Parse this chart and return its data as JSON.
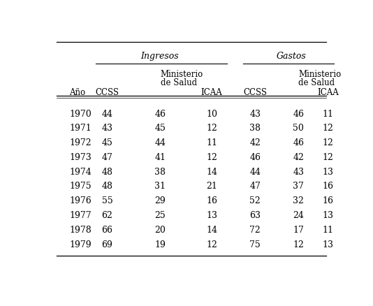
{
  "years": [
    "1970",
    "1971",
    "1972",
    "1973",
    "1974",
    "1975",
    "1976",
    "1977",
    "1978",
    "1979"
  ],
  "ingresos_ccss": [
    44,
    43,
    45,
    47,
    48,
    48,
    55,
    62,
    66,
    69
  ],
  "ingresos_minsalud": [
    46,
    45,
    44,
    41,
    38,
    31,
    29,
    25,
    20,
    19
  ],
  "ingresos_icaa": [
    10,
    12,
    11,
    12,
    14,
    21,
    16,
    13,
    14,
    12
  ],
  "gastos_ccss": [
    43,
    38,
    42,
    46,
    44,
    47,
    52,
    63,
    72,
    75
  ],
  "gastos_minsalud": [
    46,
    50,
    46,
    42,
    43,
    37,
    32,
    24,
    17,
    12
  ],
  "gastos_icaa": [
    11,
    12,
    12,
    12,
    13,
    16,
    16,
    13,
    11,
    13
  ],
  "bg_color": "#ffffff",
  "text_color": "#000000",
  "header1_ingresos": "Ingresos",
  "header1_gastos": "Gastos",
  "col_ano": "Año",
  "col_ccss": "CCSS",
  "col_minsalud_line1": "Ministerio",
  "col_minsalud_line2": "de Salud",
  "col_icaa": "ICAA",
  "font_size_header": 9,
  "font_size_subheader": 8.5,
  "font_size_data": 9
}
